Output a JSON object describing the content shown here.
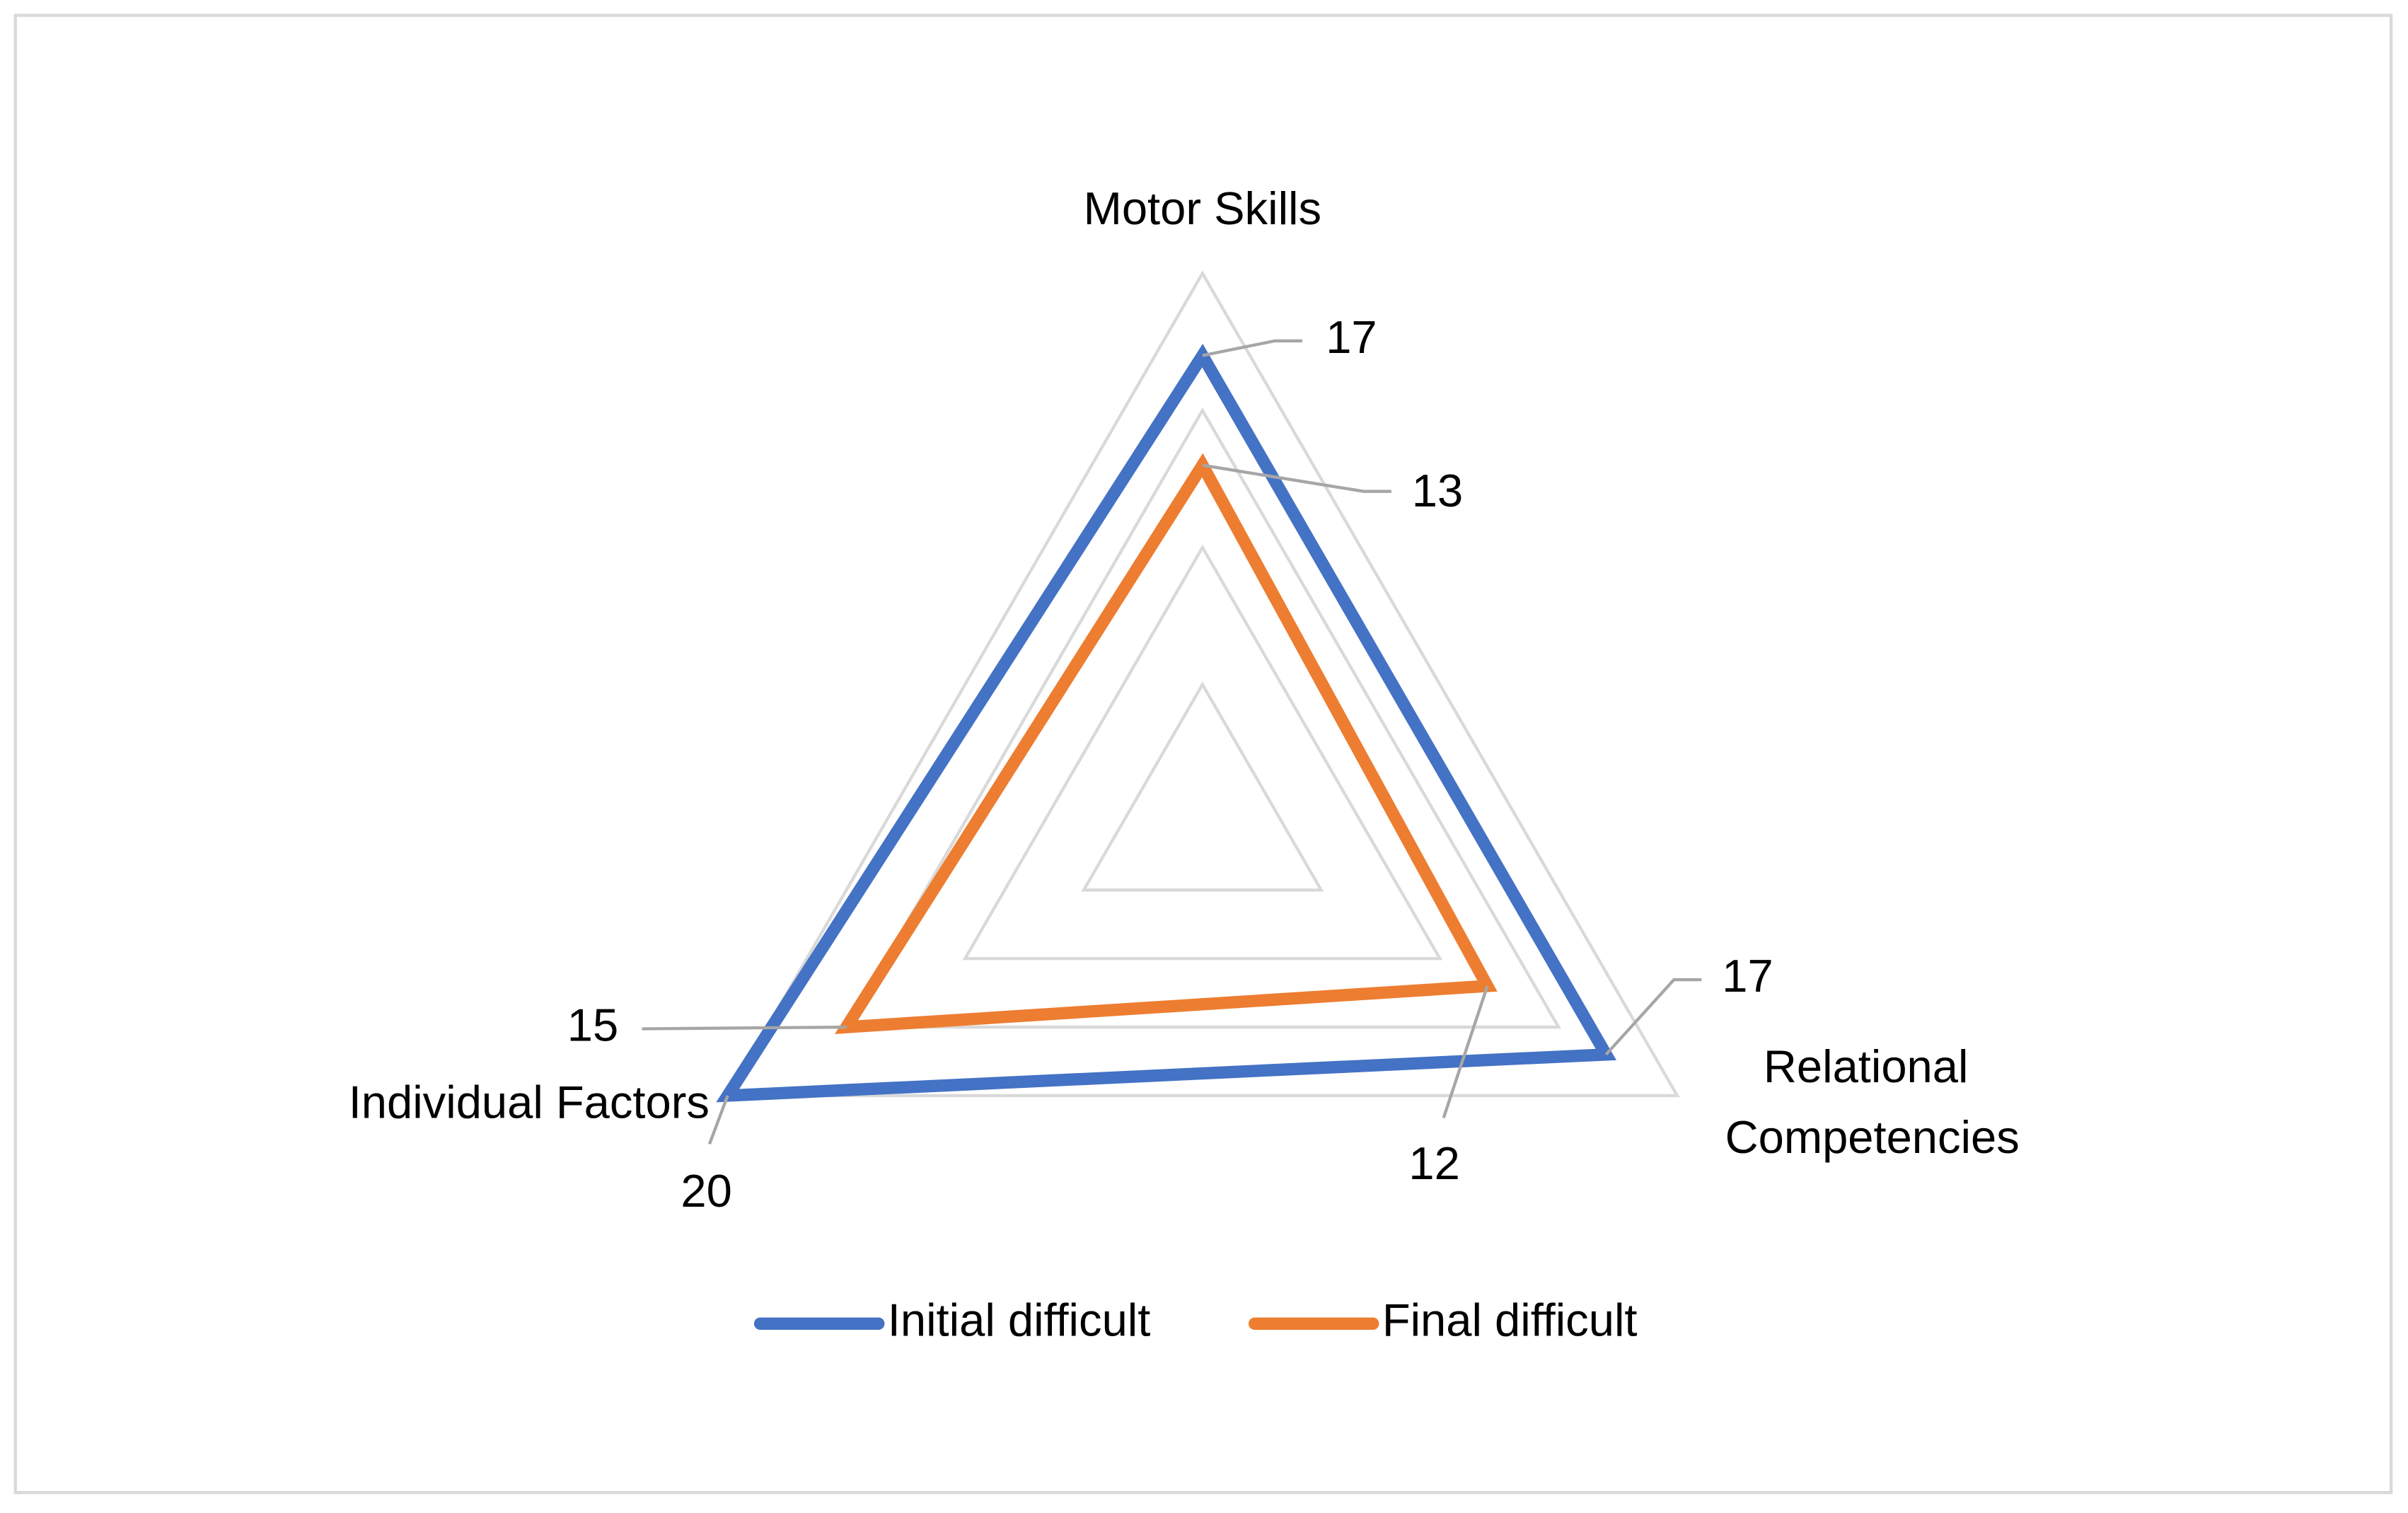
{
  "chart_data": {
    "type": "radar",
    "categories": [
      "Motor Skills",
      "Relational Competencies",
      "Individual Factors"
    ],
    "series": [
      {
        "name": "Initial difficult",
        "color": "#4472c4",
        "values": [
          17,
          17,
          20
        ]
      },
      {
        "name": "Final difficult",
        "color": "#ed7d31",
        "values": [
          13,
          12,
          15
        ]
      }
    ],
    "ylim": [
      0,
      20
    ],
    "yticks": [
      0,
      5,
      10,
      15,
      20
    ],
    "grid": true,
    "legend": "bottom"
  }
}
